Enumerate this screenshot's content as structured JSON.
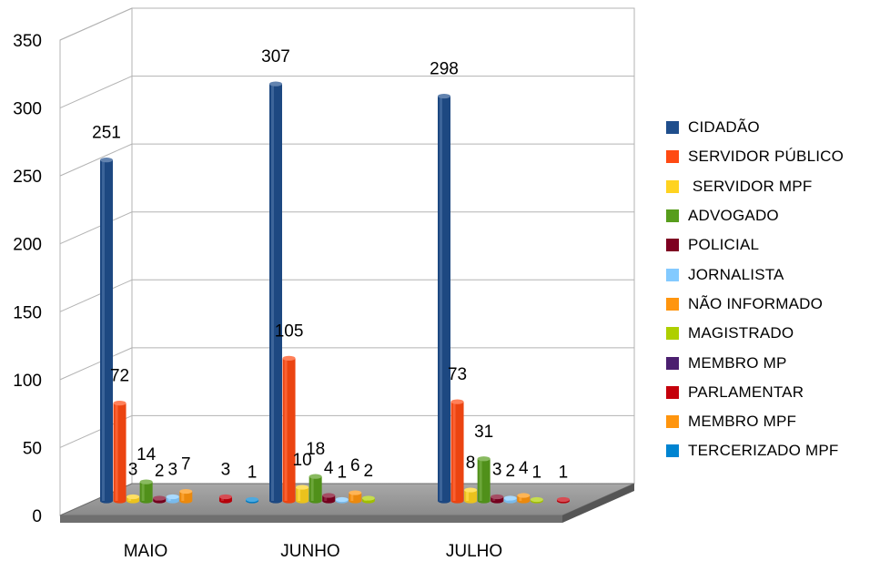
{
  "chart_data": {
    "type": "bar",
    "categories": [
      "MAIO",
      "JUNHO",
      "JULHO"
    ],
    "ylim": [
      0,
      350
    ],
    "yticks": [
      0,
      50,
      100,
      150,
      200,
      250,
      300,
      350
    ],
    "grid": true,
    "legend_position": "right",
    "series": [
      {
        "name": "CIDADÃO",
        "color": "#1f4e8c",
        "values": [
          251,
          307,
          298
        ],
        "labels": [
          "251",
          "307",
          "298"
        ]
      },
      {
        "name": "SERVIDOR PÚBLICO",
        "color": "#ff4a12",
        "values": [
          72,
          105,
          73
        ],
        "labels": [
          "72",
          "105",
          "73"
        ]
      },
      {
        "name": " SERVIDOR MPF",
        "color": "#ffd320",
        "values": [
          3,
          10,
          8
        ],
        "labels": [
          "3",
          "10",
          "8"
        ]
      },
      {
        "name": "ADVOGADO",
        "color": "#579d1c",
        "values": [
          14,
          18,
          31
        ],
        "labels": [
          "14",
          "18",
          "31"
        ]
      },
      {
        "name": "POLICIAL",
        "color": "#7e0021",
        "values": [
          2,
          4,
          3
        ],
        "labels": [
          "2",
          "4",
          "3"
        ]
      },
      {
        "name": "JORNALISTA",
        "color": "#83caff",
        "values": [
          3,
          1,
          2
        ],
        "labels": [
          "3",
          "1",
          "2"
        ]
      },
      {
        "name": "NÃO INFORMADO",
        "color": "#ff950e",
        "values": [
          7,
          6,
          4
        ],
        "labels": [
          "7",
          "6",
          "4"
        ]
      },
      {
        "name": "MAGISTRADO",
        "color": "#aecf00",
        "values": [
          null,
          2,
          1
        ],
        "labels": [
          "",
          "2",
          "1"
        ]
      },
      {
        "name": "MEMBRO MP",
        "color": "#4b1f6f",
        "values": [
          null,
          null,
          null
        ],
        "labels": [
          "",
          "",
          ""
        ]
      },
      {
        "name": "PARLAMENTAR",
        "color": "#c5000b",
        "values": [
          3,
          null,
          1
        ],
        "labels": [
          "3",
          "",
          "1"
        ]
      },
      {
        "name": "MEMBRO MPF",
        "color": "#ff950e",
        "values": [
          null,
          null,
          null
        ],
        "labels": [
          "",
          "",
          ""
        ]
      },
      {
        "name": "TERCERIZADO MPF",
        "color": "#0084d1",
        "values": [
          1,
          null,
          null
        ],
        "labels": [
          "1",
          "",
          ""
        ]
      }
    ]
  }
}
